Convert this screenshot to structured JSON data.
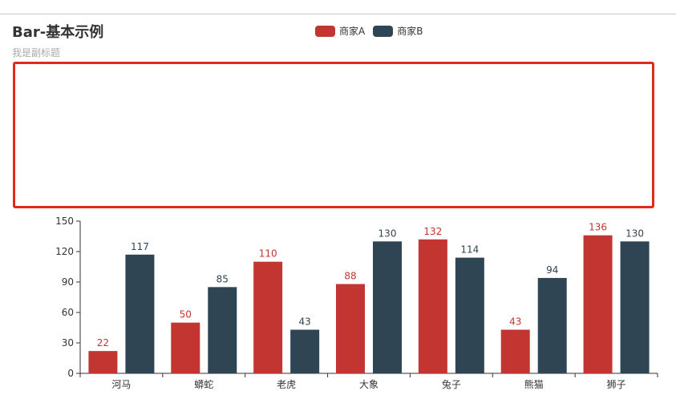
{
  "title": "Bar-基本示例",
  "subtitle": "我是副标题",
  "legend": [
    {
      "name": "商家A",
      "color": "#c23531"
    },
    {
      "name": "商家B",
      "color": "#2f4554"
    }
  ],
  "chart_data": {
    "type": "bar",
    "title": "Bar-基本示例",
    "subtitle": "我是副标题",
    "categories": [
      "河马",
      "蟒蛇",
      "老虎",
      "大象",
      "兔子",
      "熊猫",
      "狮子"
    ],
    "series": [
      {
        "name": "商家A",
        "color": "#c23531",
        "values": [
          22,
          50,
          110,
          88,
          132,
          43,
          136
        ]
      },
      {
        "name": "商家B",
        "color": "#2f4554",
        "values": [
          117,
          85,
          43,
          130,
          114,
          94,
          130
        ]
      }
    ],
    "ylim": [
      0,
      150
    ],
    "yticks": [
      0,
      30,
      60,
      90,
      120,
      150
    ],
    "grid": false,
    "legend_position": "top-center",
    "data_labels": true
  }
}
